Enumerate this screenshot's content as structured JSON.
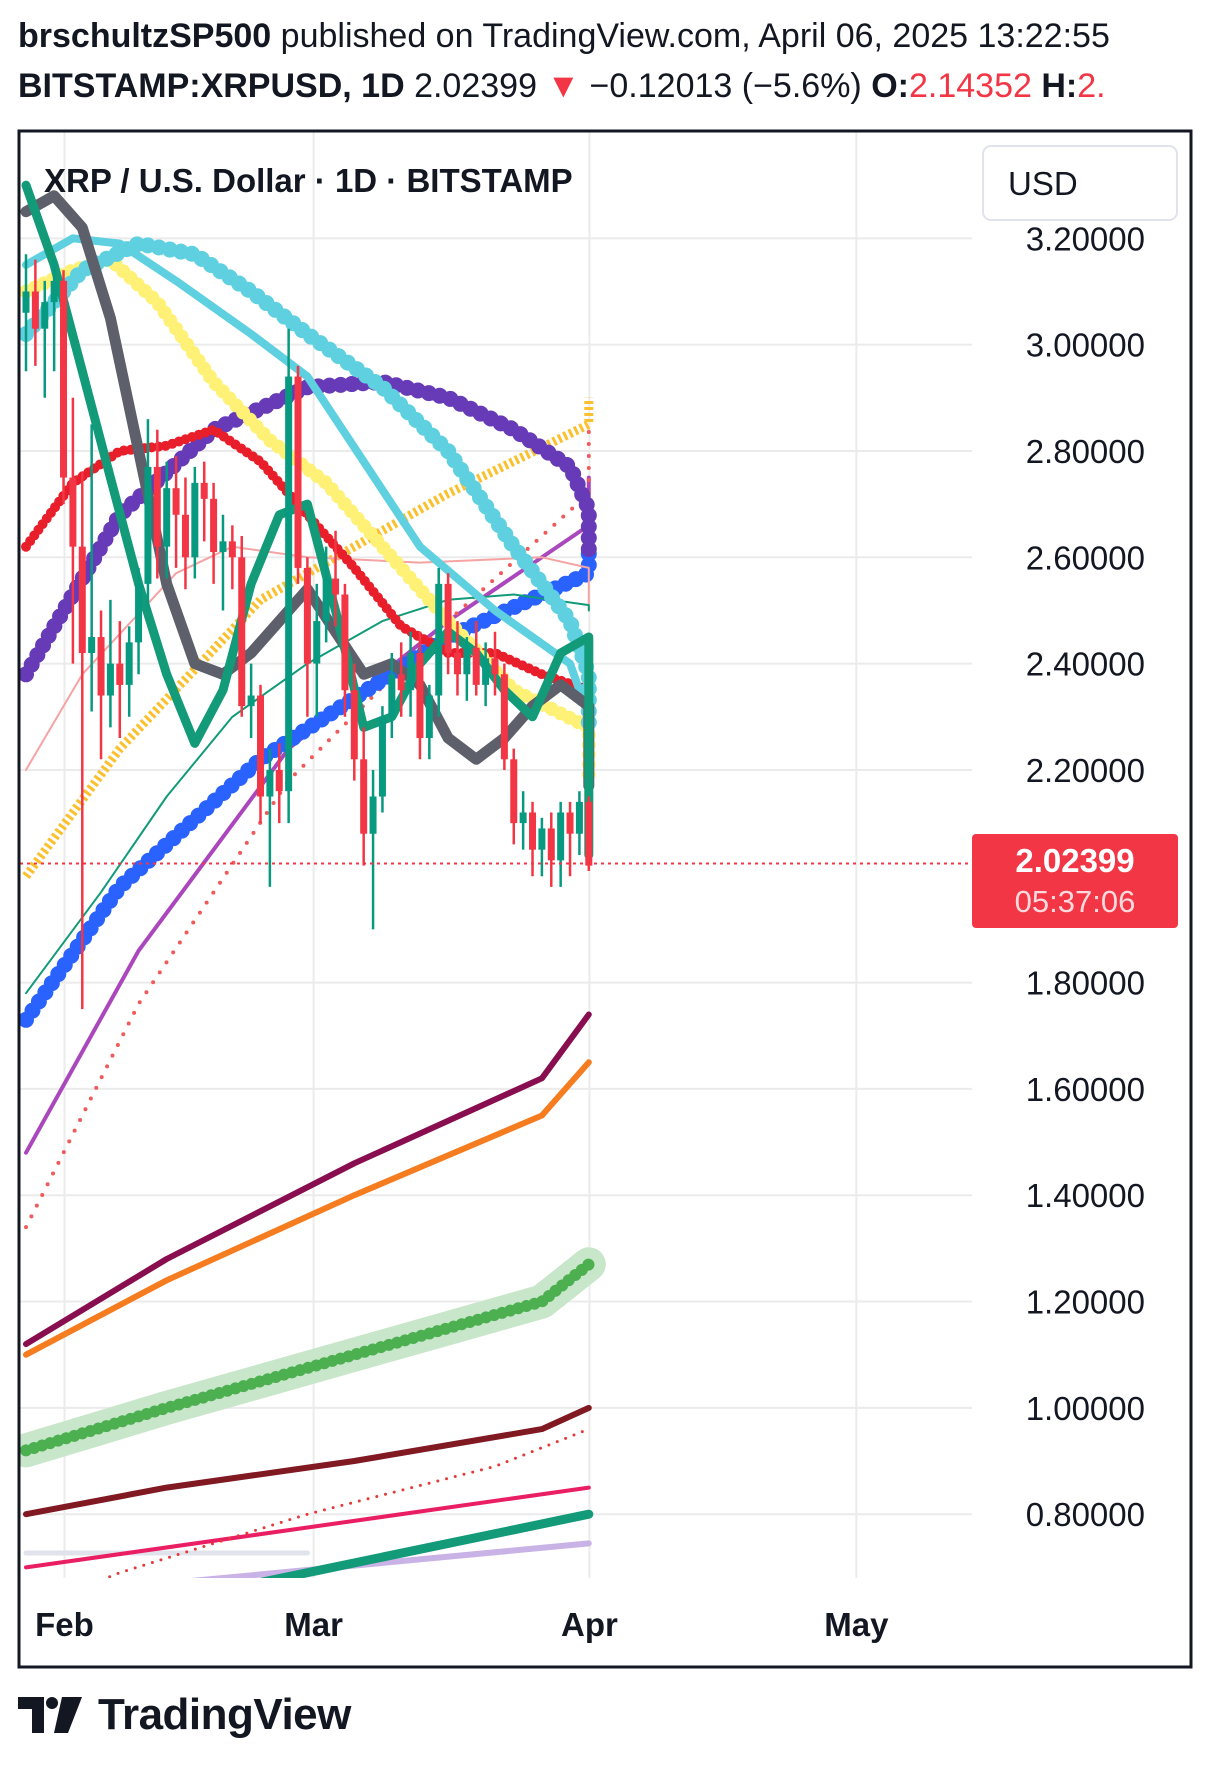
{
  "header": {
    "author": "brschultzSP500",
    "published": "published on TradingView.com, April 06, 2025 13:22:55",
    "symbol": "BITSTAMP:XRPUSD, 1D",
    "last": "2.02399",
    "arrow": "▼",
    "change": "−0.12013 (−5.6%)",
    "open_label": "O:",
    "open_value": "2.14352",
    "high_label": "H:",
    "high_value": "2."
  },
  "chart_title": "XRP / U.S. Dollar · 1D · BITSTAMP",
  "currency_button": "USD",
  "price_tag": {
    "price": "2.02399",
    "countdown": "05:37:06"
  },
  "brand": "TradingView",
  "colors": {
    "up": "#089981",
    "down": "#f23645",
    "grid": "#ebebeb",
    "text": "#131722"
  },
  "chart_data": {
    "type": "candlestick",
    "title": "XRP / U.S. Dollar · 1D · BITSTAMP",
    "x_axis": {
      "ticks": [
        {
          "label": "Feb",
          "date": "2025-02-01"
        },
        {
          "label": "Mar",
          "date": "2025-03-01"
        },
        {
          "label": "Apr",
          "date": "2025-04-01"
        },
        {
          "label": "May",
          "date": "2025-05-01"
        }
      ],
      "range": [
        "2025-01-27",
        "2025-05-14"
      ]
    },
    "y_axis": {
      "ticks": [
        3.2,
        3.0,
        2.8,
        2.6,
        2.4,
        2.2,
        1.8,
        1.6,
        1.4,
        1.2,
        1.0,
        0.8
      ],
      "tick_labels": [
        "3.20000",
        "3.00000",
        "2.80000",
        "2.60000",
        "2.40000",
        "2.20000",
        "1.80000",
        "1.60000",
        "1.40000",
        "1.20000",
        "1.00000",
        "0.80000"
      ],
      "range": [
        0.68,
        3.4
      ]
    },
    "last_price": 2.02399,
    "candles": [
      {
        "o": 3.06,
        "h": 3.17,
        "l": 2.95,
        "c": 3.1
      },
      {
        "o": 3.1,
        "h": 3.16,
        "l": 2.96,
        "c": 3.03
      },
      {
        "o": 3.03,
        "h": 3.12,
        "l": 2.9,
        "c": 3.08
      },
      {
        "o": 3.08,
        "h": 3.16,
        "l": 2.95,
        "c": 3.12
      },
      {
        "o": 3.12,
        "h": 3.14,
        "l": 2.7,
        "c": 2.75
      },
      {
        "o": 2.75,
        "h": 2.9,
        "l": 2.4,
        "c": 2.62
      },
      {
        "o": 2.62,
        "h": 2.76,
        "l": 1.75,
        "c": 2.42
      },
      {
        "o": 2.42,
        "h": 2.85,
        "l": 2.31,
        "c": 2.45
      },
      {
        "o": 2.45,
        "h": 2.5,
        "l": 2.22,
        "c": 2.34
      },
      {
        "o": 2.34,
        "h": 2.52,
        "l": 2.28,
        "c": 2.4
      },
      {
        "o": 2.4,
        "h": 2.48,
        "l": 2.26,
        "c": 2.36
      },
      {
        "o": 2.36,
        "h": 2.47,
        "l": 2.3,
        "c": 2.44
      },
      {
        "o": 2.44,
        "h": 2.58,
        "l": 2.38,
        "c": 2.55
      },
      {
        "o": 2.55,
        "h": 2.86,
        "l": 2.5,
        "c": 2.77
      },
      {
        "o": 2.77,
        "h": 2.84,
        "l": 2.56,
        "c": 2.62
      },
      {
        "o": 2.62,
        "h": 2.78,
        "l": 2.56,
        "c": 2.73
      },
      {
        "o": 2.73,
        "h": 2.79,
        "l": 2.58,
        "c": 2.68
      },
      {
        "o": 2.68,
        "h": 2.75,
        "l": 2.54,
        "c": 2.6
      },
      {
        "o": 2.6,
        "h": 2.77,
        "l": 2.56,
        "c": 2.74
      },
      {
        "o": 2.74,
        "h": 2.78,
        "l": 2.63,
        "c": 2.71
      },
      {
        "o": 2.71,
        "h": 2.74,
        "l": 2.55,
        "c": 2.61
      },
      {
        "o": 2.61,
        "h": 2.68,
        "l": 2.5,
        "c": 2.63
      },
      {
        "o": 2.63,
        "h": 2.66,
        "l": 2.54,
        "c": 2.6
      },
      {
        "o": 2.6,
        "h": 2.64,
        "l": 2.3,
        "c": 2.32
      },
      {
        "o": 2.32,
        "h": 2.4,
        "l": 2.26,
        "c": 2.34
      },
      {
        "o": 2.34,
        "h": 2.36,
        "l": 2.1,
        "c": 2.15
      },
      {
        "o": 2.15,
        "h": 2.24,
        "l": 1.98,
        "c": 2.2
      },
      {
        "o": 2.2,
        "h": 2.25,
        "l": 2.1,
        "c": 2.16
      },
      {
        "o": 2.16,
        "h": 3.03,
        "l": 2.1,
        "c": 2.94
      },
      {
        "o": 2.94,
        "h": 2.96,
        "l": 2.55,
        "c": 2.58
      },
      {
        "o": 2.58,
        "h": 2.6,
        "l": 2.3,
        "c": 2.4
      },
      {
        "o": 2.4,
        "h": 2.55,
        "l": 2.3,
        "c": 2.48
      },
      {
        "o": 2.48,
        "h": 2.62,
        "l": 2.44,
        "c": 2.56
      },
      {
        "o": 2.56,
        "h": 2.65,
        "l": 2.47,
        "c": 2.53
      },
      {
        "o": 2.53,
        "h": 2.55,
        "l": 2.3,
        "c": 2.35
      },
      {
        "o": 2.35,
        "h": 2.4,
        "l": 2.18,
        "c": 2.22
      },
      {
        "o": 2.22,
        "h": 2.28,
        "l": 2.02,
        "c": 2.08
      },
      {
        "o": 2.08,
        "h": 2.2,
        "l": 1.9,
        "c": 2.15
      },
      {
        "o": 2.15,
        "h": 2.32,
        "l": 2.12,
        "c": 2.3
      },
      {
        "o": 2.3,
        "h": 2.42,
        "l": 2.26,
        "c": 2.38
      },
      {
        "o": 2.38,
        "h": 2.44,
        "l": 2.3,
        "c": 2.35
      },
      {
        "o": 2.35,
        "h": 2.46,
        "l": 2.3,
        "c": 2.42
      },
      {
        "o": 2.42,
        "h": 2.46,
        "l": 2.22,
        "c": 2.26
      },
      {
        "o": 2.26,
        "h": 2.36,
        "l": 2.22,
        "c": 2.34
      },
      {
        "o": 2.34,
        "h": 2.58,
        "l": 2.3,
        "c": 2.55
      },
      {
        "o": 2.55,
        "h": 2.57,
        "l": 2.38,
        "c": 2.42
      },
      {
        "o": 2.42,
        "h": 2.48,
        "l": 2.34,
        "c": 2.38
      },
      {
        "o": 2.38,
        "h": 2.45,
        "l": 2.33,
        "c": 2.43
      },
      {
        "o": 2.43,
        "h": 2.48,
        "l": 2.34,
        "c": 2.36
      },
      {
        "o": 2.36,
        "h": 2.44,
        "l": 2.32,
        "c": 2.41
      },
      {
        "o": 2.41,
        "h": 2.46,
        "l": 2.34,
        "c": 2.38
      },
      {
        "o": 2.38,
        "h": 2.4,
        "l": 2.2,
        "c": 2.22
      },
      {
        "o": 2.22,
        "h": 2.24,
        "l": 2.06,
        "c": 2.1
      },
      {
        "o": 2.1,
        "h": 2.16,
        "l": 2.05,
        "c": 2.12
      },
      {
        "o": 2.12,
        "h": 2.14,
        "l": 2.0,
        "c": 2.05
      },
      {
        "o": 2.05,
        "h": 2.11,
        "l": 2.0,
        "c": 2.09
      },
      {
        "o": 2.09,
        "h": 2.12,
        "l": 1.98,
        "c": 2.03
      },
      {
        "o": 2.03,
        "h": 2.14,
        "l": 1.98,
        "c": 2.12
      },
      {
        "o": 2.12,
        "h": 2.14,
        "l": 2.0,
        "c": 2.08
      },
      {
        "o": 2.08,
        "h": 2.16,
        "l": 2.04,
        "c": 2.14
      },
      {
        "o": 2.14,
        "h": 2.15,
        "l": 2.01,
        "c": 2.02
      }
    ],
    "series": [
      {
        "color": "#e0e3eb",
        "width": 5,
        "style": "solid",
        "x": [
          0,
          30
        ],
        "y": [
          0.727,
          0.727
        ]
      },
      {
        "color": "#c9b2e6",
        "width": 6,
        "style": "solid",
        "x": [
          0,
          70
        ],
        "y": [
          0.645,
          0.745
        ]
      },
      {
        "color": "#129a79",
        "width": 9,
        "style": "solid",
        "x": [
          0,
          70
        ],
        "y": [
          0.58,
          0.8
        ]
      },
      {
        "color": "#e91e63",
        "width": 4,
        "style": "solid",
        "x": [
          0,
          70
        ],
        "y": [
          0.7,
          0.85
        ]
      },
      {
        "color": "#e33a3a",
        "width": 3,
        "style": "dotted",
        "x": [
          0,
          10,
          30,
          50,
          70
        ],
        "y": [
          0.62,
          0.69,
          0.8,
          0.89,
          0.96
        ]
      },
      {
        "color": "#801922",
        "width": 6,
        "style": "solid",
        "x": [
          0,
          15,
          35,
          55,
          70
        ],
        "y": [
          0.8,
          0.85,
          0.9,
          0.96,
          1.0
        ]
      },
      {
        "color": "#c8e6c9",
        "width": 34,
        "style": "solid",
        "x": [
          0,
          15,
          35,
          55,
          70
        ],
        "y": [
          0.92,
          1.0,
          1.1,
          1.2,
          1.27
        ]
      },
      {
        "color": "#4caf50",
        "width": 12,
        "style": "dots",
        "x": [
          0,
          15,
          35,
          55,
          70
        ],
        "y": [
          0.92,
          1.0,
          1.1,
          1.2,
          1.27
        ]
      },
      {
        "color": "#f57c1f",
        "width": 6,
        "style": "solid",
        "x": [
          0,
          15,
          35,
          55,
          70
        ],
        "y": [
          1.1,
          1.24,
          1.4,
          1.55,
          1.65
        ]
      },
      {
        "color": "#880e4f",
        "width": 6,
        "style": "solid",
        "x": [
          0,
          15,
          35,
          55,
          70
        ],
        "y": [
          1.12,
          1.28,
          1.46,
          1.62,
          1.74
        ]
      },
      {
        "color": "#ab47bc",
        "width": 4,
        "style": "solid",
        "x": [
          0,
          12,
          28,
          45,
          60,
          70
        ],
        "y": [
          1.48,
          1.86,
          2.24,
          2.48,
          2.66,
          2.75
        ]
      },
      {
        "color": "#f05a5a",
        "width": 4,
        "style": "dotted",
        "x": [
          0,
          12,
          28,
          45,
          60,
          70
        ],
        "y": [
          1.34,
          1.76,
          2.18,
          2.48,
          2.72,
          2.85
        ]
      },
      {
        "color": "#fbc02d",
        "width": 9,
        "style": "cross",
        "x": [
          0,
          10,
          25,
          45,
          60,
          70
        ],
        "y": [
          2.0,
          2.24,
          2.52,
          2.72,
          2.85,
          2.9
        ]
      },
      {
        "color": "#2962ff",
        "width": 16,
        "style": "dots",
        "x": [
          0,
          10,
          25,
          45,
          60,
          70
        ],
        "y": [
          1.73,
          1.98,
          2.22,
          2.45,
          2.57,
          2.61
        ]
      },
      {
        "color": "#f5a3a3",
        "width": 2,
        "style": "solid",
        "x": [
          0,
          6,
          16,
          22,
          30,
          42,
          55,
          62,
          70
        ],
        "y": [
          2.2,
          2.38,
          2.57,
          2.62,
          2.6,
          2.59,
          2.6,
          2.58,
          2.5
        ]
      },
      {
        "color": "#129a79",
        "width": 2,
        "style": "solid",
        "x": [
          0,
          8,
          15,
          22,
          30,
          38,
          45,
          52,
          62,
          70
        ],
        "y": [
          1.78,
          1.97,
          2.15,
          2.3,
          2.4,
          2.48,
          2.52,
          2.53,
          2.51,
          2.5
        ]
      },
      {
        "color": "#673ab7",
        "width": 16,
        "style": "dots",
        "x": [
          0,
          10,
          20,
          30,
          38,
          45,
          52,
          58,
          64,
          70
        ],
        "y": [
          2.38,
          2.68,
          2.84,
          2.92,
          2.93,
          2.9,
          2.84,
          2.77,
          2.69,
          2.6
        ]
      },
      {
        "color": "#e91e2b",
        "width": 10,
        "style": "dots",
        "x": [
          0,
          5,
          10,
          15,
          20,
          25,
          30,
          35,
          40,
          45,
          50,
          55,
          60,
          65,
          70
        ],
        "y": [
          2.62,
          2.74,
          2.8,
          2.81,
          2.84,
          2.78,
          2.68,
          2.58,
          2.47,
          2.42,
          2.42,
          2.38,
          2.35,
          2.32,
          2.29
        ]
      },
      {
        "color": "#fff176",
        "width": 14,
        "style": "dots",
        "x": [
          0,
          5,
          9,
          14,
          20,
          26,
          32,
          38,
          45,
          52,
          60,
          65,
          70
        ],
        "y": [
          3.1,
          3.14,
          3.16,
          3.08,
          2.93,
          2.82,
          2.74,
          2.62,
          2.48,
          2.35,
          2.28,
          2.24,
          2.18
        ]
      },
      {
        "color": "#5fd0e0",
        "width": 8,
        "style": "solid",
        "x": [
          0,
          5,
          10,
          16,
          24,
          30,
          36,
          42,
          50,
          58,
          64,
          70
        ],
        "y": [
          3.15,
          3.2,
          3.19,
          3.12,
          3.02,
          2.94,
          2.78,
          2.62,
          2.5,
          2.4,
          2.3,
          2.21
        ]
      },
      {
        "color": "#5fd0e0",
        "width": 16,
        "style": "dots",
        "x": [
          0,
          6,
          12,
          18,
          24,
          30,
          38,
          45,
          52,
          58,
          64,
          70
        ],
        "y": [
          3.02,
          3.14,
          3.19,
          3.17,
          3.1,
          3.02,
          2.92,
          2.8,
          2.62,
          2.48,
          2.38,
          2.28
        ]
      },
      {
        "color": "#5d606b",
        "width": 11,
        "style": "solid",
        "x": [
          0,
          3,
          6,
          9,
          12,
          15,
          18,
          21,
          24,
          27,
          30,
          33,
          36,
          39,
          42,
          45,
          48,
          51,
          54,
          57,
          60,
          63,
          66,
          70
        ],
        "y": [
          3.25,
          3.28,
          3.22,
          3.05,
          2.8,
          2.55,
          2.4,
          2.38,
          2.42,
          2.48,
          2.54,
          2.46,
          2.38,
          2.4,
          2.36,
          2.26,
          2.22,
          2.26,
          2.32,
          2.36,
          2.32,
          2.28,
          2.24,
          2.17
        ]
      },
      {
        "color": "#129a79",
        "width": 9,
        "style": "solid",
        "x": [
          0,
          3,
          6,
          9,
          12,
          15,
          18,
          21,
          24,
          27,
          30,
          33,
          36,
          39,
          42,
          45,
          48,
          51,
          54,
          57,
          60,
          63,
          66,
          70
        ],
        "y": [
          3.3,
          3.15,
          2.95,
          2.75,
          2.55,
          2.38,
          2.25,
          2.35,
          2.55,
          2.68,
          2.7,
          2.5,
          2.28,
          2.3,
          2.4,
          2.46,
          2.42,
          2.35,
          2.3,
          2.42,
          2.45,
          2.28,
          2.14,
          2.04
        ]
      }
    ]
  }
}
